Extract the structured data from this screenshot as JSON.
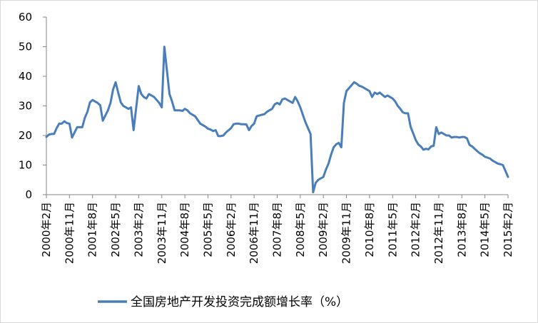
{
  "chart_data": {
    "type": "line",
    "title": "",
    "xlabel": "",
    "ylabel": "",
    "ylim": [
      0,
      60
    ],
    "yticks": [
      0,
      10,
      20,
      30,
      40,
      50,
      60
    ],
    "grid": false,
    "legend_position": "bottom",
    "line_color": "#4a7ebb",
    "x_tick_labels": [
      "2000年2月",
      "2000年11月",
      "2001年8月",
      "2002年5月",
      "2003年2月",
      "2003年11月",
      "2004年8月",
      "2005年5月",
      "2006年2月",
      "2006年11月",
      "2007年8月",
      "2008年5月",
      "2009年2月",
      "2009年11月",
      "2010年8月",
      "2011年5月",
      "2012年2月",
      "2012年11月",
      "2013年8月",
      "2014年5月",
      "2015年2月"
    ],
    "x_start": "2000-02",
    "x_end": "2015-02",
    "series": [
      {
        "name": "全国房地产开发投资完成额增长率（%）",
        "x": [
          "2000-02",
          "2000-03",
          "2000-04",
          "2000-05",
          "2000-06",
          "2000-07",
          "2000-08",
          "2000-09",
          "2000-10",
          "2000-11",
          "2000-12",
          "2001-02",
          "2001-03",
          "2001-04",
          "2001-05",
          "2001-06",
          "2001-07",
          "2001-08",
          "2001-09",
          "2001-10",
          "2001-11",
          "2001-12",
          "2002-02",
          "2002-03",
          "2002-04",
          "2002-05",
          "2002-06",
          "2002-07",
          "2002-08",
          "2002-09",
          "2002-10",
          "2002-11",
          "2002-12",
          "2003-02",
          "2003-03",
          "2003-04",
          "2003-05",
          "2003-06",
          "2003-07",
          "2003-08",
          "2003-09",
          "2003-10",
          "2003-11",
          "2003-12",
          "2004-02",
          "2004-03",
          "2004-04",
          "2004-05",
          "2004-06",
          "2004-07",
          "2004-08",
          "2004-09",
          "2004-10",
          "2004-11",
          "2004-12",
          "2005-02",
          "2005-03",
          "2005-04",
          "2005-05",
          "2005-06",
          "2005-07",
          "2005-08",
          "2005-09",
          "2005-10",
          "2005-11",
          "2005-12",
          "2006-02",
          "2006-03",
          "2006-04",
          "2006-05",
          "2006-06",
          "2006-07",
          "2006-08",
          "2006-09",
          "2006-10",
          "2006-11",
          "2006-12",
          "2007-02",
          "2007-03",
          "2007-04",
          "2007-05",
          "2007-06",
          "2007-07",
          "2007-08",
          "2007-09",
          "2007-10",
          "2007-11",
          "2007-12",
          "2008-02",
          "2008-03",
          "2008-04",
          "2008-05",
          "2008-06",
          "2008-07",
          "2008-08",
          "2008-09",
          "2008-10",
          "2008-11",
          "2008-12",
          "2009-02",
          "2009-03",
          "2009-04",
          "2009-05",
          "2009-06",
          "2009-07",
          "2009-08",
          "2009-09",
          "2009-10",
          "2009-11",
          "2009-12",
          "2010-02",
          "2010-03",
          "2010-04",
          "2010-05",
          "2010-06",
          "2010-07",
          "2010-08",
          "2010-09",
          "2010-10",
          "2010-11",
          "2010-12",
          "2011-02",
          "2011-03",
          "2011-04",
          "2011-05",
          "2011-06",
          "2011-07",
          "2011-08",
          "2011-09",
          "2011-10",
          "2011-11",
          "2011-12",
          "2012-02",
          "2012-03",
          "2012-04",
          "2012-05",
          "2012-06",
          "2012-07",
          "2012-08",
          "2012-09",
          "2012-10",
          "2012-11",
          "2012-12",
          "2013-02",
          "2013-03",
          "2013-04",
          "2013-05",
          "2013-06",
          "2013-07",
          "2013-08",
          "2013-09",
          "2013-10",
          "2013-11",
          "2013-12",
          "2014-02",
          "2014-03",
          "2014-04",
          "2014-05",
          "2014-06",
          "2014-07",
          "2014-08",
          "2014-09",
          "2014-10",
          "2014-11",
          "2014-12",
          "2015-02"
        ],
        "values": [
          19.5,
          20.3,
          20.5,
          20.5,
          22.5,
          24.0,
          24.0,
          24.8,
          24.2,
          24.0,
          19.3,
          22.8,
          22.8,
          22.8,
          26.0,
          28.0,
          31.2,
          32.0,
          31.5,
          31.0,
          30.2,
          25.0,
          28.5,
          31.0,
          35.5,
          38.0,
          34.5,
          31.2,
          30.0,
          29.5,
          29.0,
          29.5,
          21.8,
          36.7,
          34.0,
          33.0,
          32.5,
          34.0,
          33.5,
          33.0,
          32.0,
          31.0,
          29.5,
          50.0,
          34.0,
          31.5,
          28.5,
          28.5,
          28.5,
          28.3,
          29.0,
          28.5,
          27.5,
          27.0,
          26.5,
          24.0,
          23.5,
          23.0,
          22.3,
          22.0,
          21.5,
          21.8,
          19.8,
          19.8,
          20.0,
          21.0,
          22.5,
          23.8,
          24.0,
          24.0,
          23.8,
          23.8,
          23.7,
          21.8,
          23.2,
          24.0,
          26.5,
          27.0,
          27.2,
          28.0,
          28.5,
          29.0,
          30.5,
          31.0,
          30.5,
          32.2,
          32.5,
          32.0,
          31.0,
          33.0,
          31.5,
          29.5,
          27.0,
          24.5,
          22.5,
          20.5,
          0.8,
          4.0,
          5.0,
          6.0,
          8.5,
          10.5,
          13.5,
          16.0,
          17.0,
          17.5,
          16.0,
          31.0,
          35.0,
          36.0,
          38.0,
          37.5,
          36.8,
          36.5,
          36.0,
          35.5,
          35.0,
          33.0,
          34.5,
          34.0,
          34.5,
          33.0,
          33.5,
          33.0,
          32.5,
          31.5,
          30.0,
          29.0,
          27.8,
          27.5,
          27.5,
          23.0,
          18.5,
          17.0,
          16.3,
          15.2,
          15.5,
          15.3,
          16.3,
          16.5,
          22.8,
          20.5,
          21.0,
          20.0,
          20.0,
          19.3,
          19.5,
          19.5,
          19.3,
          19.5,
          19.5,
          19.0,
          16.8,
          16.3,
          14.7,
          14.0,
          13.5,
          12.8,
          12.5,
          12.2,
          11.5,
          11.0,
          10.5,
          10.3,
          10.0,
          6.0
        ]
      }
    ]
  }
}
